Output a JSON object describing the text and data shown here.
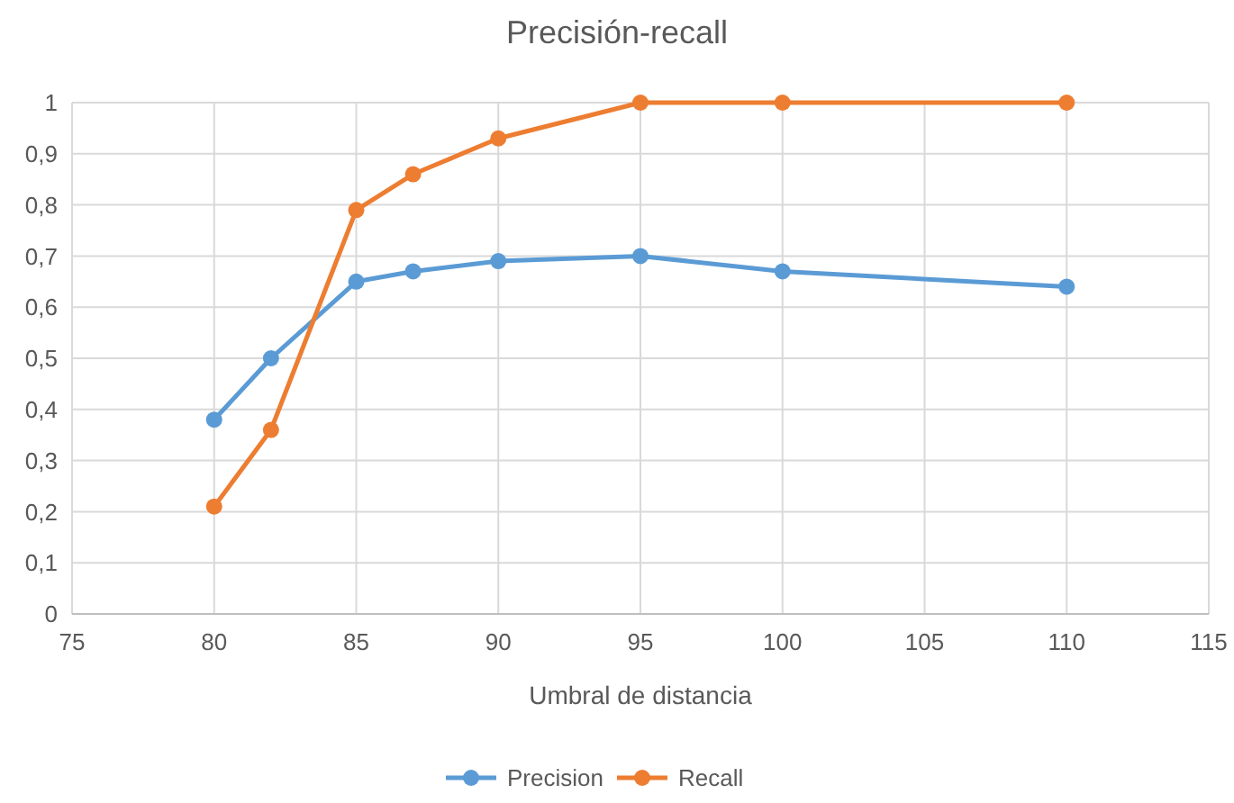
{
  "chart_data": {
    "type": "line",
    "title": "Precisión-recall",
    "xlabel": "Umbral de distancia",
    "x": [
      80,
      82,
      85,
      87,
      90,
      95,
      100,
      110
    ],
    "series": [
      {
        "name": "Precision",
        "color": "#5b9bd5",
        "values": [
          0.38,
          0.5,
          0.65,
          0.67,
          0.69,
          0.7,
          0.67,
          0.64
        ]
      },
      {
        "name": "Recall",
        "color": "#ed7d31",
        "values": [
          0.21,
          0.36,
          0.79,
          0.86,
          0.93,
          1,
          1,
          1
        ]
      }
    ],
    "xlim": [
      75,
      115
    ],
    "xticks": [
      75,
      80,
      85,
      90,
      95,
      100,
      105,
      110,
      115
    ],
    "ylim": [
      0,
      1
    ],
    "yticks": [
      0,
      {
        "value": 0.1,
        "label": "0,1"
      },
      {
        "value": 0.2,
        "label": "0,2"
      },
      {
        "value": 0.3,
        "label": "0,3"
      },
      {
        "value": 0.4,
        "label": "0,4"
      },
      {
        "value": 0.5,
        "label": "0,5"
      },
      {
        "value": 0.6,
        "label": "0,6"
      },
      {
        "value": 0.7,
        "label": "0,7"
      },
      {
        "value": 0.8,
        "label": "0,8"
      },
      {
        "value": 0.9,
        "label": "0,9"
      },
      1
    ],
    "grid": true,
    "legend": "bottom",
    "marker": "circle",
    "line_style": "solid"
  }
}
